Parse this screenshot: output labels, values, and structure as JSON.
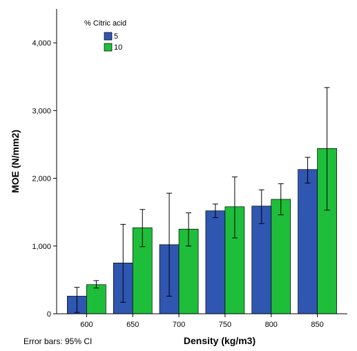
{
  "chart_data": {
    "type": "bar",
    "title": "",
    "xlabel": "Density (kg/m3)",
    "ylabel": "MOE (N/mm2)",
    "categories": [
      "600",
      "650",
      "700",
      "750",
      "800",
      "850"
    ],
    "ylim": [
      0,
      4500
    ],
    "yticks": [
      0,
      1000,
      2000,
      3000,
      4000
    ],
    "ytick_labels": [
      "0",
      "1,000",
      "2,000",
      "3,000",
      "4,000"
    ],
    "legend_title": "% Citric acid",
    "legend_position": "top-left",
    "grid": false,
    "footnote": "Error bars: 95% CI",
    "series": [
      {
        "name": "5",
        "color": "#2f56b0",
        "values": [
          260,
          750,
          1020,
          1520,
          1590,
          2130
        ],
        "error_low": [
          20,
          170,
          260,
          1420,
          1330,
          1930
        ],
        "error_high": [
          390,
          1320,
          1780,
          1620,
          1830,
          2310
        ]
      },
      {
        "name": "10",
        "color": "#1ebe3a",
        "values": [
          430,
          1270,
          1250,
          1580,
          1690,
          2440
        ],
        "error_low": [
          380,
          990,
          1000,
          1120,
          1460,
          1530
        ],
        "error_high": [
          490,
          1540,
          1490,
          2020,
          1920,
          3340
        ]
      }
    ]
  }
}
